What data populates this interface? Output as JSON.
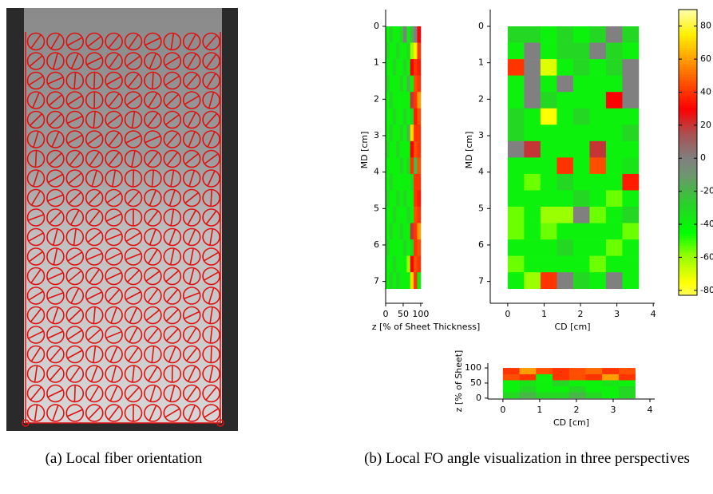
{
  "captions": [
    "(a)  Local fiber orientation",
    "(b)  Local FO angle visualization in three perspectives"
  ],
  "chart_data": [
    {
      "type": "heatmap",
      "xlabel": "z [% of Sheet Thickness]",
      "ylabel": "MD [cm]",
      "xlim": [
        0,
        107
      ],
      "ylim": [
        -0.46,
        7.6
      ],
      "y_reversed": true,
      "xticks": [
        0,
        50,
        100
      ],
      "yticks": [
        0,
        1,
        2,
        3,
        4,
        5,
        6,
        7
      ],
      "xbins": [
        0,
        10,
        20,
        30,
        40,
        50,
        60,
        70,
        80,
        90,
        100
      ],
      "ybins": [
        0,
        0.45,
        0.9,
        1.35,
        1.8,
        2.25,
        2.7,
        3.15,
        3.6,
        4.05,
        4.5,
        4.95,
        5.4,
        5.85,
        6.3,
        6.75,
        7.2
      ],
      "z": [
        [
          -40,
          -30,
          -40,
          -40,
          -30,
          0,
          -40,
          -20,
          0,
          30
        ],
        [
          -30,
          -40,
          -40,
          -30,
          -40,
          -40,
          -30,
          -60,
          75,
          40
        ],
        [
          -40,
          -40,
          -30,
          -40,
          -40,
          -30,
          -40,
          30,
          40,
          35
        ],
        [
          -30,
          -40,
          -40,
          -40,
          -30,
          -40,
          -20,
          -40,
          45,
          40
        ],
        [
          -40,
          -30,
          -40,
          -40,
          -40,
          -40,
          -40,
          20,
          40,
          60
        ],
        [
          -40,
          -40,
          -30,
          -40,
          -40,
          -30,
          -40,
          -30,
          35,
          45
        ],
        [
          -40,
          -30,
          -40,
          -40,
          -30,
          -40,
          -20,
          70,
          40,
          40
        ],
        [
          -30,
          -40,
          -40,
          -30,
          -40,
          -40,
          -40,
          30,
          45,
          40
        ],
        [
          -40,
          -40,
          -40,
          -40,
          -30,
          -40,
          -30,
          40,
          -20,
          45
        ],
        [
          -40,
          -30,
          -40,
          -40,
          -40,
          -40,
          -40,
          -30,
          40,
          40
        ],
        [
          -30,
          -40,
          -40,
          -30,
          -40,
          -30,
          -40,
          -40,
          40,
          35
        ],
        [
          -40,
          -40,
          -30,
          -40,
          -40,
          -40,
          -30,
          -40,
          45,
          40
        ],
        [
          -40,
          -30,
          -40,
          -40,
          -30,
          -40,
          -40,
          20,
          40,
          60
        ],
        [
          -30,
          -40,
          -40,
          -40,
          -40,
          -30,
          -40,
          -30,
          40,
          45
        ],
        [
          -40,
          -40,
          -30,
          -40,
          -40,
          -40,
          -60,
          30,
          45,
          40
        ],
        [
          -40,
          -30,
          -40,
          -30,
          -40,
          -40,
          -40,
          70,
          40,
          -40
        ]
      ]
    },
    {
      "type": "heatmap",
      "xlabel": "CD [cm]",
      "ylabel": "MD [cm]",
      "xlim": [
        -0.48,
        4.04
      ],
      "ylim": [
        -0.46,
        7.6
      ],
      "y_reversed": true,
      "xticks": [
        0,
        1,
        2,
        3,
        4
      ],
      "yticks": [
        0,
        1,
        2,
        3,
        4,
        5,
        6,
        7
      ],
      "xbins": [
        0,
        0.45,
        0.9,
        1.35,
        1.8,
        2.25,
        2.7,
        3.15,
        3.6
      ],
      "ybins": [
        0,
        0.45,
        0.9,
        1.35,
        1.8,
        2.25,
        2.7,
        3.15,
        3.6,
        4.05,
        4.5,
        4.95,
        5.4,
        5.85,
        6.3,
        6.75,
        7.2
      ],
      "z": [
        [
          -30,
          -30,
          -40,
          -30,
          -40,
          -30,
          0,
          -30
        ],
        [
          -40,
          0,
          -40,
          -30,
          -30,
          0,
          -30,
          -40
        ],
        [
          40,
          0,
          -70,
          -40,
          -30,
          -40,
          -30,
          0
        ],
        [
          -40,
          0,
          -40,
          0,
          -40,
          -40,
          -40,
          0
        ],
        [
          -40,
          0,
          -30,
          -40,
          -40,
          -40,
          30,
          0
        ],
        [
          -30,
          -40,
          -75,
          -40,
          -30,
          -40,
          -40,
          -40
        ],
        [
          -30,
          -40,
          -40,
          -40,
          -40,
          -40,
          -40,
          -30
        ],
        [
          0,
          20,
          -40,
          -40,
          -40,
          20,
          -40,
          -40
        ],
        [
          -40,
          -40,
          -40,
          40,
          -40,
          45,
          -40,
          -35
        ],
        [
          -40,
          -55,
          -40,
          -30,
          -40,
          -40,
          -40,
          35
        ],
        [
          -40,
          -40,
          -40,
          -40,
          -30,
          -40,
          -55,
          -40
        ],
        [
          -55,
          -40,
          -60,
          -60,
          0,
          -55,
          -40,
          -30
        ],
        [
          -55,
          -40,
          -55,
          -40,
          -40,
          -40,
          -40,
          -55
        ],
        [
          -40,
          -40,
          -40,
          -30,
          -40,
          -40,
          -55,
          -40
        ],
        [
          -55,
          -40,
          -40,
          -40,
          -40,
          -55,
          -40,
          -40
        ],
        [
          -40,
          -60,
          40,
          0,
          -30,
          -40,
          0,
          -40
        ]
      ]
    },
    {
      "type": "heatmap",
      "xlabel": "CD [cm]",
      "ylabel": "z [% of Sheet]",
      "xlim": [
        -0.41,
        4.13
      ],
      "ylim": [
        -3,
        116
      ],
      "y_reversed": false,
      "xticks": [
        0,
        1,
        2,
        3,
        4
      ],
      "yticks": [
        0,
        50,
        100
      ],
      "xbins": [
        0,
        0.45,
        0.9,
        1.35,
        1.8,
        2.25,
        2.7,
        3.15,
        3.6
      ],
      "ybins": [
        0,
        20,
        40,
        60,
        80,
        100
      ],
      "z": [
        [
          -30,
          -20,
          -30,
          -30,
          -20,
          -30,
          -40,
          -30
        ],
        [
          -40,
          -30,
          -40,
          -40,
          -30,
          -40,
          -40,
          -30
        ],
        [
          -40,
          -35,
          -40,
          -30,
          -40,
          -40,
          -35,
          -40
        ],
        [
          45,
          40,
          -40,
          40,
          45,
          40,
          60,
          40
        ],
        [
          40,
          60,
          45,
          40,
          45,
          50,
          40,
          45
        ]
      ]
    },
    {
      "type": "colorbar",
      "ylim": [
        -83,
        90
      ],
      "yticks": [
        80,
        60,
        40,
        20,
        0,
        -20,
        -40,
        -60,
        -80
      ]
    }
  ]
}
